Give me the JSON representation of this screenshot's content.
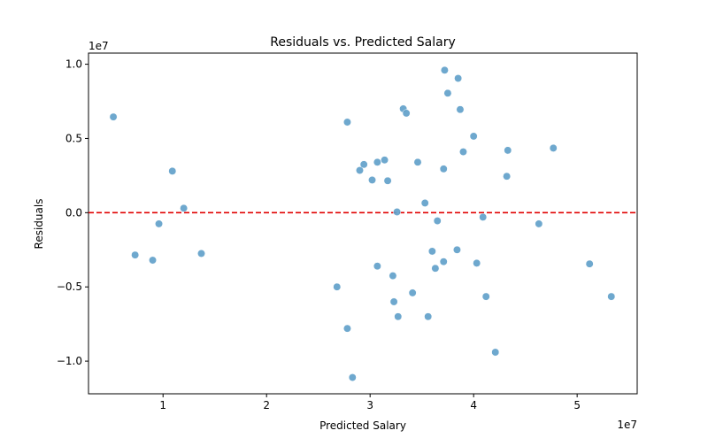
{
  "chart_data": {
    "type": "scatter",
    "title": "Residuals vs. Predicted Salary",
    "xlabel": "Predicted Salary",
    "ylabel": "Residuals",
    "x_offset_label": "1e7",
    "y_offset_label": "1e7",
    "xlim": [
      2800000,
      55800000
    ],
    "ylim": [
      -12200000,
      10750000
    ],
    "x_ticks": [
      {
        "value": 10000000,
        "label": "1"
      },
      {
        "value": 20000000,
        "label": "2"
      },
      {
        "value": 30000000,
        "label": "3"
      },
      {
        "value": 40000000,
        "label": "4"
      },
      {
        "value": 50000000,
        "label": "5"
      }
    ],
    "y_ticks": [
      {
        "value": 10000000,
        "label": "1.0"
      },
      {
        "value": 5000000,
        "label": "0.5"
      },
      {
        "value": 0,
        "label": "0.0"
      },
      {
        "value": -5000000,
        "label": "−0.5"
      },
      {
        "value": -10000000,
        "label": "−1.0"
      }
    ],
    "reference_line": {
      "y": 0,
      "color": "#e00000",
      "style": "dashed"
    },
    "point_color": "#5e9ec9",
    "grid": false,
    "series": [
      {
        "points": [
          [
            5200000,
            6450000
          ],
          [
            10900000,
            2800000
          ],
          [
            12000000,
            300000
          ],
          [
            9600000,
            -750000
          ],
          [
            7300000,
            -2850000
          ],
          [
            9000000,
            -3200000
          ],
          [
            13700000,
            -2750000
          ],
          [
            27800000,
            6100000
          ],
          [
            29000000,
            2850000
          ],
          [
            29400000,
            3250000
          ],
          [
            30200000,
            2200000
          ],
          [
            30700000,
            3400000
          ],
          [
            31400000,
            3550000
          ],
          [
            31700000,
            2150000
          ],
          [
            33200000,
            7000000
          ],
          [
            33500000,
            6700000
          ],
          [
            34600000,
            3400000
          ],
          [
            35300000,
            650000
          ],
          [
            32600000,
            50000
          ],
          [
            36500000,
            -550000
          ],
          [
            36000000,
            -2600000
          ],
          [
            36300000,
            -3750000
          ],
          [
            37100000,
            -3300000
          ],
          [
            38400000,
            -2500000
          ],
          [
            37200000,
            9600000
          ],
          [
            38500000,
            9050000
          ],
          [
            37500000,
            8050000
          ],
          [
            38700000,
            6950000
          ],
          [
            40000000,
            5150000
          ],
          [
            39000000,
            4100000
          ],
          [
            37100000,
            2950000
          ],
          [
            43300000,
            4200000
          ],
          [
            47700000,
            4350000
          ],
          [
            43200000,
            2450000
          ],
          [
            40900000,
            -300000
          ],
          [
            46300000,
            -750000
          ],
          [
            40300000,
            -3400000
          ],
          [
            30700000,
            -3600000
          ],
          [
            32200000,
            -4250000
          ],
          [
            34100000,
            -5400000
          ],
          [
            32300000,
            -6000000
          ],
          [
            32700000,
            -7000000
          ],
          [
            35600000,
            -7000000
          ],
          [
            26800000,
            -5000000
          ],
          [
            27800000,
            -7800000
          ],
          [
            28300000,
            -11100000
          ],
          [
            41200000,
            -5650000
          ],
          [
            42100000,
            -9400000
          ],
          [
            51200000,
            -3450000
          ],
          [
            53300000,
            -5650000
          ]
        ]
      }
    ]
  }
}
